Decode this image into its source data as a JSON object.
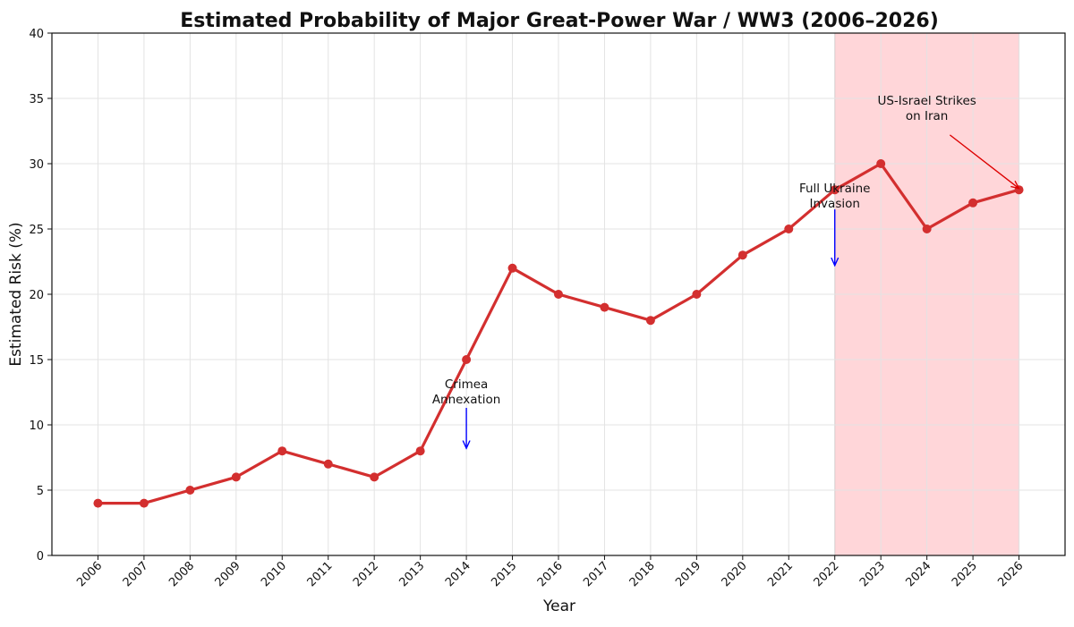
{
  "chart_data": {
    "type": "line",
    "title": "Estimated Probability of Major Great-Power War / WW3 (2006–2026)",
    "xlabel": "Year",
    "ylabel": "Estimated Risk (%)",
    "x": [
      "2006",
      "2007",
      "2008",
      "2009",
      "2010",
      "2011",
      "2012",
      "2013",
      "2014",
      "2015",
      "2016",
      "2017",
      "2018",
      "2019",
      "2020",
      "2021",
      "2022",
      "2023",
      "2024",
      "2025",
      "2026"
    ],
    "series": [
      {
        "values": [
          4,
          4,
          5,
          6,
          8,
          7,
          6,
          8,
          15,
          22,
          20,
          19,
          18,
          20,
          23,
          25,
          28,
          30,
          25,
          27,
          28
        ],
        "color": "#d32f2f"
      }
    ],
    "ylim": [
      0,
      40
    ],
    "yticks": [
      "0",
      "5",
      "10",
      "15",
      "20",
      "25",
      "30",
      "35",
      "40"
    ],
    "grid": true,
    "shaded_region": {
      "from": "2022",
      "to": "2026",
      "color": "#ffc8cc"
    },
    "annotations": [
      {
        "lines": [
          "Crimea",
          "Annexation"
        ],
        "year": "2014",
        "text_y": 12.5,
        "arrow_from_y": 11.3,
        "arrow_to_y": 8.2,
        "color": "#0000ff"
      },
      {
        "lines": [
          "Full Ukraine",
          "Invasion"
        ],
        "year": "2022",
        "text_y": 27.5,
        "arrow_from_y": 26.5,
        "arrow_to_y": 22.2,
        "color": "#0000ff"
      },
      {
        "lines": [
          "US-Israel Strikes",
          "on Iran"
        ],
        "text_year": "2024",
        "text_y": 34.2,
        "arrow_from_year": "2024.5",
        "arrow_from_y": 32.2,
        "arrow_to_year": "2026",
        "arrow_to_y": 28.1,
        "color": "#dd0000"
      }
    ]
  }
}
